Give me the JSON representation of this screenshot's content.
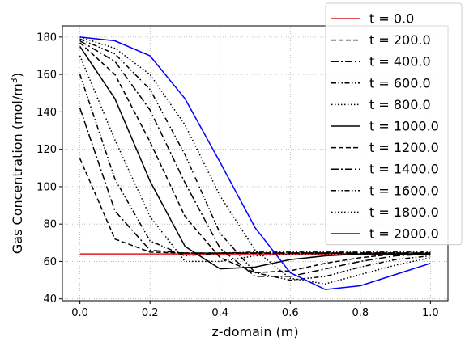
{
  "chart_data": {
    "type": "line",
    "title": "",
    "xlabel": "z-domain (m)",
    "ylabel_main": "Gas Concentration (mol/m",
    "ylabel_sup": "3",
    "ylabel_close": ")",
    "xlim": [
      -0.05,
      1.05
    ],
    "ylim": [
      39,
      186
    ],
    "xticks": [
      0.0,
      0.2,
      0.4,
      0.6,
      0.8,
      1.0
    ],
    "xtick_labels": [
      "0.0",
      "0.2",
      "0.4",
      "0.6",
      "0.8",
      "1.0"
    ],
    "yticks": [
      40,
      60,
      80,
      100,
      120,
      140,
      160,
      180
    ],
    "ytick_labels": [
      "40",
      "60",
      "80",
      "100",
      "120",
      "140",
      "160",
      "180"
    ],
    "grid": true,
    "legend_position": "top-right",
    "x": [
      0.0,
      0.1,
      0.2,
      0.3,
      0.4,
      0.5,
      0.6,
      0.7,
      0.8,
      0.9,
      1.0
    ],
    "series": [
      {
        "name": "t = 0.0",
        "color": "#e41a1c",
        "dash": "solid",
        "values": [
          64,
          64,
          64,
          64,
          64,
          64,
          64,
          64,
          64,
          64,
          64
        ]
      },
      {
        "name": "t = 200.0",
        "color": "#000000",
        "dash": "dashed",
        "values": [
          115,
          72,
          65,
          64.5,
          64.5,
          64.5,
          64.5,
          64.5,
          64.5,
          64.5,
          64.5
        ]
      },
      {
        "name": "t = 400.0",
        "color": "#000000",
        "dash": "dashdot",
        "values": [
          142,
          87,
          66,
          64.5,
          64.5,
          64.5,
          64.5,
          64.5,
          64.5,
          64.5,
          64.5
        ]
      },
      {
        "name": "t = 600.0",
        "color": "#000000",
        "dash": "dashdotdot",
        "values": [
          160,
          104,
          71,
          63,
          64.5,
          65,
          65,
          65,
          65,
          65,
          65
        ]
      },
      {
        "name": "t = 800.0",
        "color": "#000000",
        "dash": "dotted",
        "values": [
          170,
          125,
          84,
          60,
          60,
          63,
          64,
          64,
          64,
          64,
          64
        ]
      },
      {
        "name": "t = 1000.0",
        "color": "#000000",
        "dash": "solid",
        "values": [
          175,
          147,
          103,
          68,
          56,
          57,
          61,
          63,
          64,
          64,
          64
        ]
      },
      {
        "name": "t = 1200.0",
        "color": "#000000",
        "dash": "dashed",
        "values": [
          177,
          160,
          124,
          84,
          62,
          54,
          55,
          59,
          62,
          64,
          64
        ]
      },
      {
        "name": "t = 1400.0",
        "color": "#000000",
        "dash": "dashdot",
        "values": [
          178,
          167,
          141,
          102,
          67,
          52,
          52,
          56,
          60,
          63,
          64
        ]
      },
      {
        "name": "t = 1600.0",
        "color": "#000000",
        "dash": "dashdotdot",
        "values": [
          179,
          171,
          152,
          117,
          75,
          54,
          50,
          52,
          57,
          61,
          63
        ]
      },
      {
        "name": "t = 1800.0",
        "color": "#000000",
        "dash": "dotted",
        "values": [
          180,
          174,
          160,
          133,
          95,
          66,
          51,
          48,
          53,
          58,
          62
        ]
      },
      {
        "name": "t = 2000.0",
        "color": "#0000ff",
        "dash": "solid",
        "values": [
          180,
          178,
          170,
          147,
          113,
          78,
          54,
          45,
          47,
          53,
          59
        ]
      }
    ]
  }
}
